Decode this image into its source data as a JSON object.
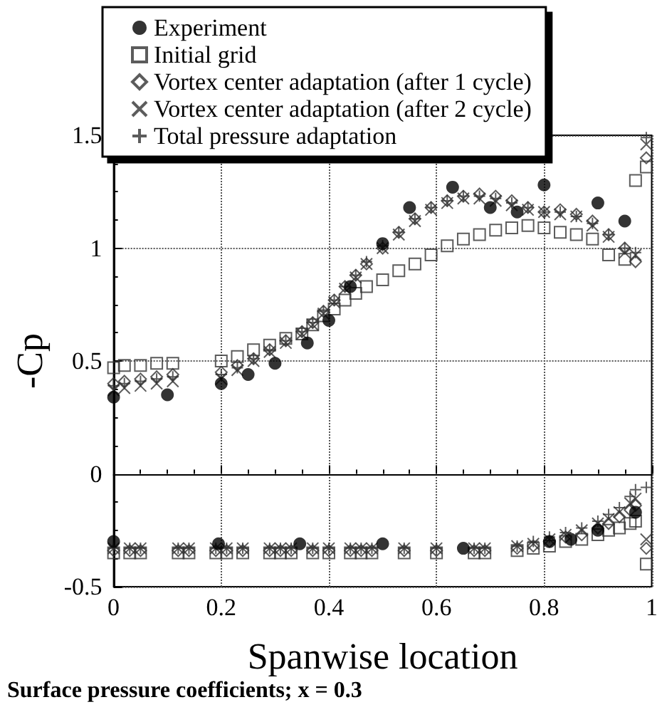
{
  "chart_data": {
    "type": "scatter",
    "title": "Surface pressure coefficients; x = 0.3",
    "xlabel": "Spanwise location",
    "ylabel": "-Cp",
    "xlim": [
      0,
      1
    ],
    "ylim": [
      -0.5,
      1.5
    ],
    "xticks": [
      0,
      0.2,
      0.4,
      0.6,
      0.8,
      1
    ],
    "yticks": [
      -0.5,
      0,
      0.5,
      1,
      1.5
    ],
    "grid": true,
    "legend": "top",
    "series": [
      {
        "name": "Experiment",
        "color": "#000000",
        "marker": "circle",
        "x": [
          0,
          0.1,
          0.2,
          0.25,
          0.3,
          0.36,
          0.4,
          0.44,
          0.5,
          0.55,
          0.63,
          0.7,
          0.75,
          0.8,
          0.9,
          0.95,
          0,
          0.195,
          0.346,
          0.5,
          0.65,
          0.81,
          0.85,
          0.9,
          0.97
        ],
        "values": [
          0.34,
          0.35,
          0.4,
          0.44,
          0.49,
          0.58,
          0.68,
          0.83,
          1.02,
          1.18,
          1.27,
          1.18,
          1.16,
          1.28,
          1.2,
          1.12,
          -0.3,
          -0.31,
          -0.31,
          -0.31,
          -0.33,
          -0.3,
          -0.29,
          -0.25,
          -0.17
        ]
      },
      {
        "name": "Initial grid",
        "color": "#333333",
        "marker": "square",
        "x": [
          0,
          0.02,
          0.05,
          0.08,
          0.11,
          0.2,
          0.23,
          0.26,
          0.29,
          0.32,
          0.35,
          0.37,
          0.39,
          0.41,
          0.43,
          0.45,
          0.47,
          0.5,
          0.53,
          0.56,
          0.59,
          0.62,
          0.65,
          0.68,
          0.71,
          0.74,
          0.77,
          0.8,
          0.83,
          0.86,
          0.89,
          0.92,
          0.95,
          0.97,
          0.99,
          0,
          0.03,
          0.05,
          0.12,
          0.14,
          0.19,
          0.21,
          0.24,
          0.29,
          0.31,
          0.33,
          0.37,
          0.4,
          0.44,
          0.46,
          0.48,
          0.54,
          0.6,
          0.67,
          0.69,
          0.75,
          0.78,
          0.81,
          0.84,
          0.87,
          0.9,
          0.92,
          0.94,
          0.96,
          0.97,
          0.99
        ],
        "values": [
          0.47,
          0.48,
          0.48,
          0.49,
          0.49,
          0.5,
          0.52,
          0.55,
          0.57,
          0.6,
          0.62,
          0.66,
          0.7,
          0.73,
          0.77,
          0.8,
          0.83,
          0.86,
          0.9,
          0.93,
          0.97,
          1.01,
          1.04,
          1.06,
          1.08,
          1.09,
          1.1,
          1.09,
          1.07,
          1.06,
          1.04,
          0.97,
          0.95,
          1.3,
          1.36,
          -0.35,
          -0.35,
          -0.35,
          -0.35,
          -0.35,
          -0.35,
          -0.35,
          -0.35,
          -0.35,
          -0.35,
          -0.35,
          -0.35,
          -0.35,
          -0.35,
          -0.35,
          -0.35,
          -0.35,
          -0.35,
          -0.35,
          -0.35,
          -0.34,
          -0.33,
          -0.32,
          -0.3,
          -0.29,
          -0.27,
          -0.25,
          -0.24,
          -0.22,
          -0.21,
          -0.4
        ]
      },
      {
        "name": "Vortex center adaptation (after 1 cycle)",
        "color": "#333333",
        "marker": "diamond",
        "x": [
          0,
          0.02,
          0.05,
          0.08,
          0.11,
          0.2,
          0.23,
          0.26,
          0.29,
          0.32,
          0.35,
          0.37,
          0.39,
          0.41,
          0.43,
          0.45,
          0.47,
          0.5,
          0.53,
          0.56,
          0.59,
          0.62,
          0.65,
          0.68,
          0.71,
          0.74,
          0.77,
          0.8,
          0.83,
          0.86,
          0.89,
          0.92,
          0.95,
          0.97,
          0.99,
          0,
          0.03,
          0.05,
          0.12,
          0.14,
          0.19,
          0.21,
          0.24,
          0.29,
          0.31,
          0.33,
          0.37,
          0.4,
          0.44,
          0.46,
          0.48,
          0.54,
          0.6,
          0.67,
          0.69,
          0.75,
          0.78,
          0.81,
          0.84,
          0.87,
          0.9,
          0.92,
          0.94,
          0.96,
          0.97,
          0.99
        ],
        "values": [
          0.4,
          0.41,
          0.42,
          0.43,
          0.44,
          0.45,
          0.48,
          0.51,
          0.55,
          0.59,
          0.63,
          0.67,
          0.72,
          0.77,
          0.83,
          0.88,
          0.93,
          1.0,
          1.07,
          1.13,
          1.18,
          1.21,
          1.23,
          1.24,
          1.23,
          1.21,
          1.18,
          1.16,
          1.17,
          1.15,
          1.12,
          1.06,
          1.0,
          0.94,
          1.4,
          -0.34,
          -0.34,
          -0.34,
          -0.34,
          -0.34,
          -0.34,
          -0.34,
          -0.34,
          -0.34,
          -0.34,
          -0.34,
          -0.34,
          -0.34,
          -0.34,
          -0.34,
          -0.34,
          -0.34,
          -0.34,
          -0.34,
          -0.34,
          -0.33,
          -0.32,
          -0.3,
          -0.28,
          -0.27,
          -0.24,
          -0.22,
          -0.19,
          -0.16,
          -0.14,
          -0.33
        ]
      },
      {
        "name": "Vortex center adaptation (after 2 cycle)",
        "color": "#333333",
        "marker": "cross",
        "x": [
          0,
          0.02,
          0.05,
          0.08,
          0.11,
          0.2,
          0.23,
          0.26,
          0.29,
          0.32,
          0.35,
          0.37,
          0.39,
          0.41,
          0.43,
          0.45,
          0.47,
          0.5,
          0.53,
          0.56,
          0.59,
          0.62,
          0.65,
          0.68,
          0.71,
          0.74,
          0.77,
          0.8,
          0.83,
          0.86,
          0.89,
          0.92,
          0.95,
          0.97,
          0.99,
          0,
          0.03,
          0.05,
          0.12,
          0.14,
          0.19,
          0.21,
          0.24,
          0.29,
          0.31,
          0.33,
          0.37,
          0.4,
          0.44,
          0.46,
          0.48,
          0.54,
          0.6,
          0.67,
          0.69,
          0.75,
          0.78,
          0.81,
          0.84,
          0.87,
          0.9,
          0.92,
          0.94,
          0.96,
          0.97,
          0.99
        ],
        "values": [
          0.37,
          0.38,
          0.39,
          0.4,
          0.41,
          0.42,
          0.46,
          0.5,
          0.54,
          0.58,
          0.62,
          0.66,
          0.71,
          0.76,
          0.82,
          0.87,
          0.93,
          1.0,
          1.06,
          1.12,
          1.17,
          1.2,
          1.22,
          1.22,
          1.21,
          1.19,
          1.17,
          1.16,
          1.15,
          1.14,
          1.1,
          1.05,
          0.98,
          0.97,
          1.46,
          -0.33,
          -0.33,
          -0.33,
          -0.33,
          -0.33,
          -0.33,
          -0.33,
          -0.33,
          -0.33,
          -0.33,
          -0.33,
          -0.33,
          -0.33,
          -0.33,
          -0.33,
          -0.33,
          -0.33,
          -0.33,
          -0.33,
          -0.33,
          -0.32,
          -0.31,
          -0.29,
          -0.27,
          -0.25,
          -0.22,
          -0.2,
          -0.17,
          -0.13,
          -0.11,
          -0.29
        ]
      },
      {
        "name": "Total pressure adaptation",
        "color": "#333333",
        "marker": "plus",
        "x": [
          0,
          0.02,
          0.05,
          0.08,
          0.11,
          0.2,
          0.23,
          0.26,
          0.29,
          0.32,
          0.35,
          0.37,
          0.39,
          0.41,
          0.43,
          0.45,
          0.47,
          0.5,
          0.53,
          0.56,
          0.59,
          0.62,
          0.65,
          0.68,
          0.71,
          0.74,
          0.77,
          0.8,
          0.83,
          0.86,
          0.89,
          0.92,
          0.95,
          0.97,
          0.99,
          0,
          0.03,
          0.05,
          0.12,
          0.14,
          0.19,
          0.21,
          0.24,
          0.29,
          0.31,
          0.33,
          0.37,
          0.4,
          0.44,
          0.46,
          0.48,
          0.54,
          0.6,
          0.67,
          0.69,
          0.75,
          0.78,
          0.81,
          0.84,
          0.87,
          0.9,
          0.92,
          0.94,
          0.96,
          0.97,
          0.99
        ],
        "values": [
          0.39,
          0.4,
          0.41,
          0.42,
          0.43,
          0.44,
          0.47,
          0.51,
          0.55,
          0.59,
          0.63,
          0.67,
          0.72,
          0.77,
          0.83,
          0.88,
          0.94,
          1.01,
          1.07,
          1.13,
          1.18,
          1.21,
          1.23,
          1.23,
          1.22,
          1.2,
          1.18,
          1.16,
          1.16,
          1.14,
          1.11,
          1.06,
          1.0,
          0.98,
          1.49,
          -0.33,
          -0.33,
          -0.33,
          -0.33,
          -0.33,
          -0.33,
          -0.33,
          -0.33,
          -0.33,
          -0.33,
          -0.33,
          -0.33,
          -0.33,
          -0.33,
          -0.33,
          -0.33,
          -0.33,
          -0.33,
          -0.33,
          -0.33,
          -0.32,
          -0.3,
          -0.28,
          -0.26,
          -0.24,
          -0.21,
          -0.18,
          -0.15,
          -0.1,
          -0.07,
          -0.06
        ]
      }
    ]
  }
}
